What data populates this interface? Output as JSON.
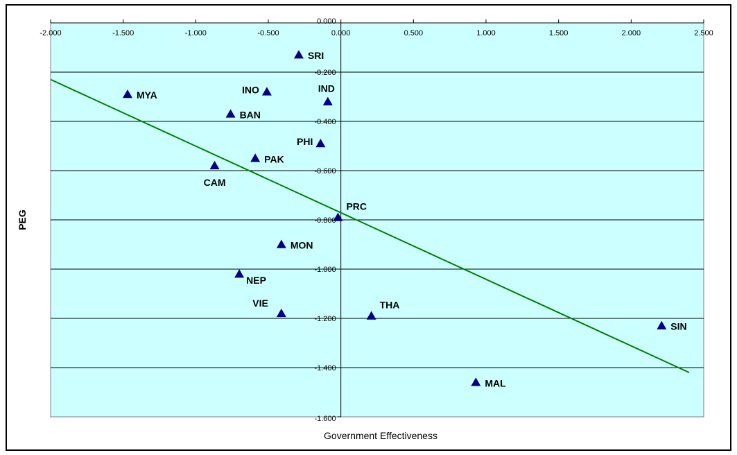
{
  "chart_data": {
    "type": "scatter",
    "title": "",
    "xlabel": "Government Effectiveness",
    "ylabel": "PEG",
    "xlim": [
      -2.0,
      2.5
    ],
    "ylim": [
      -1.6,
      0.0
    ],
    "x_ticks": [
      -2.0,
      -1.5,
      -1.0,
      -0.5,
      0.0,
      0.5,
      1.0,
      1.5,
      2.0,
      2.5
    ],
    "y_ticks": [
      0.0,
      -0.2,
      -0.4,
      -0.6,
      -0.8,
      -1.0,
      -1.2,
      -1.4,
      -1.6
    ],
    "x_tick_labels": [
      "-2.000",
      "-1.500",
      "-1.000",
      "-0.500",
      "0.000",
      "0.500",
      "1.000",
      "1.500",
      "2.000",
      "2.500"
    ],
    "y_tick_labels": [
      "0.000",
      "-0.200",
      "-0.400",
      "-0.600",
      "-0.800",
      "-1.000",
      "-1.200",
      "-1.400",
      "-1.600"
    ],
    "grid": "horizontal",
    "background_color": "#ccffff",
    "marker_color": "#000080",
    "trend_color": "#008000",
    "trendline": {
      "x": [
        -2.0,
        2.4
      ],
      "y": [
        -0.23,
        -1.42
      ]
    },
    "points": [
      {
        "label": "SRI",
        "x": -0.29,
        "y": -0.13,
        "pos": "right"
      },
      {
        "label": "MYA",
        "x": -1.47,
        "y": -0.29,
        "pos": "right"
      },
      {
        "label": "INO",
        "x": -0.51,
        "y": -0.28,
        "pos": "left"
      },
      {
        "label": "IND",
        "x": -0.09,
        "y": -0.32,
        "pos": "above"
      },
      {
        "label": "BAN",
        "x": -0.76,
        "y": -0.37,
        "pos": "right"
      },
      {
        "label": "PHI",
        "x": -0.14,
        "y": -0.49,
        "pos": "left"
      },
      {
        "label": "PAK",
        "x": -0.59,
        "y": -0.55,
        "pos": "right"
      },
      {
        "label": "CAM",
        "x": -0.87,
        "y": -0.58,
        "pos": "below"
      },
      {
        "label": "PRC",
        "x": -0.02,
        "y": -0.79,
        "pos": "above-right"
      },
      {
        "label": "MON",
        "x": -0.41,
        "y": -0.9,
        "pos": "right"
      },
      {
        "label": "NEP",
        "x": -0.7,
        "y": -1.02,
        "pos": "below-right"
      },
      {
        "label": "VIE",
        "x": -0.41,
        "y": -1.18,
        "pos": "above-left"
      },
      {
        "label": "THA",
        "x": 0.21,
        "y": -1.19,
        "pos": "above-right"
      },
      {
        "label": "SIN",
        "x": 2.21,
        "y": -1.23,
        "pos": "right"
      },
      {
        "label": "MAL",
        "x": 0.93,
        "y": -1.46,
        "pos": "right"
      }
    ]
  }
}
